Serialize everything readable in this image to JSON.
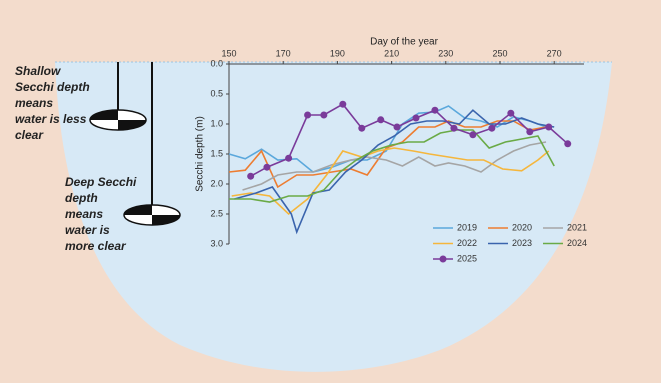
{
  "chart_data": {
    "type": "line",
    "xlabel": "Day of the year",
    "ylabel": "Secchi depth (m)",
    "xlim": [
      150,
      281
    ],
    "xticks": [
      150,
      170,
      190,
      210,
      230,
      250,
      270
    ],
    "ylim": [
      0,
      3
    ],
    "y_inverted": true,
    "yticks": [
      {
        "value": 0,
        "label": "0.0"
      },
      {
        "value": 0.5,
        "label": "0.5"
      },
      {
        "value": 1,
        "label": "1.0"
      },
      {
        "value": 1.5,
        "label": "1.5"
      },
      {
        "value": 2,
        "label": "2.0"
      },
      {
        "value": 2.5,
        "label": "2.5"
      },
      {
        "value": 3,
        "label": "3.0"
      }
    ],
    "annotations": [
      {
        "lines": [
          "Shallow",
          "Secchi depth",
          "means",
          "water is less",
          "clear"
        ]
      },
      {
        "lines": [
          "Deep Secchi",
          "depth",
          "means",
          "water is",
          "more clear"
        ]
      }
    ],
    "series": [
      {
        "name": "2019",
        "color": "#5ba8dc",
        "x": [
          150,
          156,
          162,
          168,
          175,
          181,
          188,
          195,
          201,
          208,
          214,
          220,
          226,
          231,
          237,
          243,
          249,
          255,
          261,
          267
        ],
        "values": [
          1.5,
          1.58,
          1.42,
          1.6,
          1.58,
          1.8,
          1.72,
          1.6,
          1.6,
          1.45,
          1.0,
          0.82,
          0.8,
          0.7,
          0.9,
          0.95,
          1.05,
          0.88,
          0.95,
          1.05
        ]
      },
      {
        "name": "2020",
        "color": "#ed7d31",
        "x": [
          150,
          156,
          162,
          168,
          175,
          181,
          188,
          195,
          201,
          208,
          214,
          220,
          226,
          231,
          237,
          243,
          249,
          255,
          261,
          267
        ],
        "values": [
          1.8,
          1.77,
          1.45,
          2.05,
          1.85,
          1.85,
          1.8,
          1.75,
          1.85,
          1.4,
          1.3,
          1.05,
          1.05,
          0.95,
          1.05,
          1.05,
          0.95,
          0.95,
          1.1,
          1.05
        ]
      },
      {
        "name": "2021",
        "color": "#a5a5a5",
        "x": [
          155,
          162,
          168,
          175,
          181,
          188,
          195,
          201,
          208,
          214,
          220,
          226,
          231,
          237,
          243,
          249,
          255,
          261,
          267
        ],
        "values": [
          2.1,
          2.0,
          1.85,
          1.8,
          1.8,
          1.68,
          1.6,
          1.55,
          1.6,
          1.7,
          1.55,
          1.7,
          1.65,
          1.7,
          1.8,
          1.6,
          1.45,
          1.35,
          1.3
        ]
      },
      {
        "name": "2022",
        "color": "#f5b63c",
        "x": [
          151,
          158,
          165,
          172,
          179,
          186,
          192,
          199,
          205,
          211,
          218,
          224,
          231,
          238,
          244,
          251,
          258,
          264,
          268
        ],
        "values": [
          2.2,
          2.15,
          2.2,
          2.5,
          2.25,
          1.85,
          1.45,
          1.55,
          1.45,
          1.4,
          1.45,
          1.5,
          1.55,
          1.6,
          1.6,
          1.75,
          1.78,
          1.6,
          1.45
        ]
      },
      {
        "name": "2023",
        "color": "#3a64ad",
        "x": [
          152,
          160,
          166,
          173,
          175,
          181,
          187,
          193,
          199,
          205,
          211,
          217,
          223,
          229,
          235,
          240,
          246,
          252,
          258,
          264,
          270
        ],
        "values": [
          2.25,
          2.15,
          2.05,
          2.5,
          2.8,
          2.15,
          2.1,
          1.8,
          1.6,
          1.35,
          1.2,
          1.0,
          0.95,
          0.95,
          1.0,
          0.77,
          1.0,
          1.0,
          0.9,
          1.0,
          1.05
        ]
      },
      {
        "name": "2024",
        "color": "#6aaa46",
        "x": [
          150,
          158,
          165,
          172,
          179,
          185,
          191,
          197,
          203,
          210,
          216,
          222,
          228,
          234,
          240,
          246,
          252,
          258,
          264,
          270
        ],
        "values": [
          2.25,
          2.25,
          2.3,
          2.2,
          2.2,
          2.1,
          1.8,
          1.6,
          1.45,
          1.35,
          1.3,
          1.3,
          1.15,
          1.1,
          1.1,
          1.4,
          1.3,
          1.25,
          1.2,
          1.7
        ]
      },
      {
        "name": "2025",
        "color": "#7a3b9a",
        "markers": true,
        "x": [
          158,
          164,
          172,
          179,
          185,
          192,
          199,
          206,
          212,
          219,
          226,
          233,
          240,
          247,
          254,
          261,
          268,
          275
        ],
        "values": [
          1.87,
          1.72,
          1.57,
          0.85,
          0.85,
          0.67,
          1.07,
          0.93,
          1.05,
          0.9,
          0.77,
          1.07,
          1.18,
          1.07,
          0.82,
          1.13,
          1.05,
          1.33
        ]
      }
    ]
  }
}
